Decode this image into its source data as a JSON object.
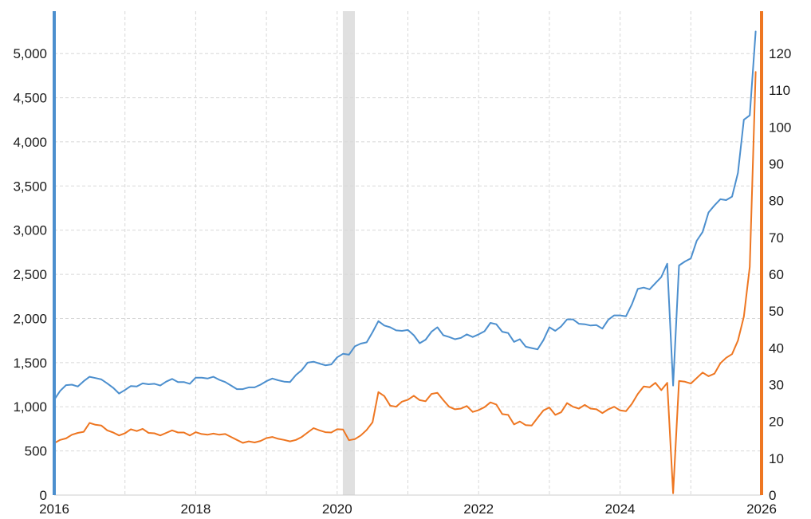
{
  "chart_data": {
    "type": "line",
    "title": "",
    "legend": "none",
    "background": "#ffffff",
    "x": [
      "2016-01",
      "2016-02",
      "2016-03",
      "2016-04",
      "2016-05",
      "2016-06",
      "2016-07",
      "2016-08",
      "2016-09",
      "2016-10",
      "2016-11",
      "2016-12",
      "2017-01",
      "2017-02",
      "2017-03",
      "2017-04",
      "2017-05",
      "2017-06",
      "2017-07",
      "2017-08",
      "2017-09",
      "2017-10",
      "2017-11",
      "2017-12",
      "2018-01",
      "2018-02",
      "2018-03",
      "2018-04",
      "2018-05",
      "2018-06",
      "2018-07",
      "2018-08",
      "2018-09",
      "2018-10",
      "2018-11",
      "2018-12",
      "2019-01",
      "2019-02",
      "2019-03",
      "2019-04",
      "2019-05",
      "2019-06",
      "2019-07",
      "2019-08",
      "2019-09",
      "2019-10",
      "2019-11",
      "2019-12",
      "2020-01",
      "2020-02",
      "2020-03",
      "2020-04",
      "2020-05",
      "2020-06",
      "2020-07",
      "2020-08",
      "2020-09",
      "2020-10",
      "2020-11",
      "2020-12",
      "2021-01",
      "2021-02",
      "2021-03",
      "2021-04",
      "2021-05",
      "2021-06",
      "2021-07",
      "2021-08",
      "2021-09",
      "2021-10",
      "2021-11",
      "2021-12",
      "2022-01",
      "2022-02",
      "2022-03",
      "2022-04",
      "2022-05",
      "2022-06",
      "2022-07",
      "2022-08",
      "2022-09",
      "2022-10",
      "2022-11",
      "2022-12",
      "2023-01",
      "2023-02",
      "2023-03",
      "2023-04",
      "2023-05",
      "2023-06",
      "2023-07",
      "2023-08",
      "2023-09",
      "2023-10",
      "2023-11",
      "2023-12",
      "2024-01",
      "2024-02",
      "2024-03",
      "2024-04",
      "2024-05",
      "2024-06",
      "2024-07",
      "2024-08",
      "2024-09",
      "2024-10",
      "2024-11",
      "2024-12",
      "2025-01",
      "2025-02",
      "2025-03",
      "2025-04",
      "2025-05",
      "2025-06",
      "2025-07",
      "2025-08",
      "2025-09",
      "2025-10",
      "2025-11",
      "2025-12"
    ],
    "series": [
      {
        "name": "blue-left-axis-series",
        "axis": "left",
        "color": "#4c8fce",
        "values": [
          1080,
          1180,
          1245,
          1250,
          1230,
          1290,
          1340,
          1325,
          1310,
          1265,
          1215,
          1150,
          1190,
          1235,
          1230,
          1265,
          1255,
          1260,
          1240,
          1285,
          1315,
          1280,
          1280,
          1260,
          1330,
          1330,
          1320,
          1340,
          1305,
          1280,
          1240,
          1200,
          1200,
          1220,
          1220,
          1250,
          1290,
          1320,
          1300,
          1285,
          1280,
          1360,
          1415,
          1500,
          1510,
          1490,
          1470,
          1480,
          1560,
          1600,
          1590,
          1685,
          1715,
          1730,
          1845,
          1970,
          1920,
          1900,
          1865,
          1860,
          1870,
          1810,
          1720,
          1760,
          1850,
          1900,
          1810,
          1790,
          1765,
          1780,
          1820,
          1790,
          1820,
          1855,
          1950,
          1935,
          1850,
          1835,
          1735,
          1765,
          1680,
          1665,
          1650,
          1755,
          1900,
          1860,
          1910,
          1990,
          1990,
          1940,
          1935,
          1920,
          1925,
          1885,
          1985,
          2035,
          2035,
          2025,
          2160,
          2335,
          2350,
          2330,
          2400,
          2470,
          2620,
          1240,
          2600,
          2645,
          2680,
          2880,
          2980,
          3200,
          3280,
          3350,
          3340,
          3380,
          3650,
          4250,
          4300,
          5250
        ]
      },
      {
        "name": "orange-right-axis-series",
        "axis": "right",
        "color": "#ee7621",
        "values": [
          14.1,
          15.0,
          15.4,
          16.4,
          16.9,
          17.2,
          19.6,
          19.1,
          18.9,
          17.6,
          17.0,
          16.2,
          16.8,
          17.9,
          17.4,
          18.0,
          16.9,
          16.8,
          16.2,
          16.9,
          17.6,
          17.0,
          17.0,
          16.2,
          17.1,
          16.6,
          16.4,
          16.7,
          16.4,
          16.6,
          15.8,
          15.0,
          14.2,
          14.6,
          14.3,
          14.7,
          15.5,
          15.8,
          15.3,
          15.0,
          14.6,
          15.0,
          15.8,
          17.0,
          18.2,
          17.6,
          17.1,
          17.0,
          17.9,
          17.8,
          14.9,
          15.2,
          16.2,
          17.7,
          19.8,
          28.0,
          26.9,
          24.3,
          24.0,
          25.4,
          25.9,
          27.0,
          25.8,
          25.5,
          27.5,
          27.8,
          25.8,
          24.0,
          23.3,
          23.5,
          24.2,
          22.6,
          23.1,
          23.9,
          25.2,
          24.6,
          22.0,
          21.8,
          19.2,
          20.0,
          19.0,
          18.9,
          21.0,
          23.0,
          23.8,
          21.8,
          22.5,
          25.0,
          24.0,
          23.5,
          24.5,
          23.5,
          23.3,
          22.3,
          23.3,
          24.0,
          23.0,
          22.8,
          24.8,
          27.5,
          29.5,
          29.3,
          30.5,
          28.5,
          30.5,
          0.5,
          31.0,
          30.8,
          30.3,
          31.8,
          33.3,
          32.3,
          33.0,
          35.8,
          37.3,
          38.3,
          42.0,
          48.5,
          62.0,
          115.0
        ]
      }
    ],
    "left_axis": {
      "tick_values": [
        0,
        500,
        1000,
        1500,
        2000,
        2500,
        3000,
        3500,
        4000,
        4500,
        5000
      ],
      "tick_labels": [
        "0",
        "500",
        "1,000",
        "1,500",
        "2,000",
        "2,500",
        "3,000",
        "3,500",
        "4,000",
        "4,500",
        "5,000"
      ],
      "display_max": 5480,
      "axis_color": "#4c8fce"
    },
    "right_axis": {
      "tick_values": [
        0,
        10,
        20,
        30,
        40,
        50,
        60,
        70,
        80,
        90,
        100,
        110,
        120
      ],
      "tick_labels": [
        "0",
        "10",
        "20",
        "30",
        "40",
        "50",
        "60",
        "70",
        "80",
        "90",
        "100",
        "110",
        "120"
      ],
      "display_max": 131.5,
      "axis_color": "#ee7621"
    },
    "x_axis": {
      "range": [
        2016,
        2026
      ],
      "gridline_years": [
        2016,
        2017,
        2018,
        2019,
        2020,
        2021,
        2022,
        2023,
        2024,
        2025,
        2026
      ],
      "tick_years": [
        2016,
        2018,
        2020,
        2022,
        2024,
        2026
      ],
      "tick_labels": [
        "2016",
        "2018",
        "2020",
        "2022",
        "2024",
        "2026"
      ]
    },
    "recession_band": {
      "start": 2020.08,
      "end": 2020.25,
      "color": "#e0e0e0"
    },
    "grid": {
      "color": "#d8d8d8",
      "dash": "4 3",
      "zero_line_color": "#cccccc"
    }
  }
}
